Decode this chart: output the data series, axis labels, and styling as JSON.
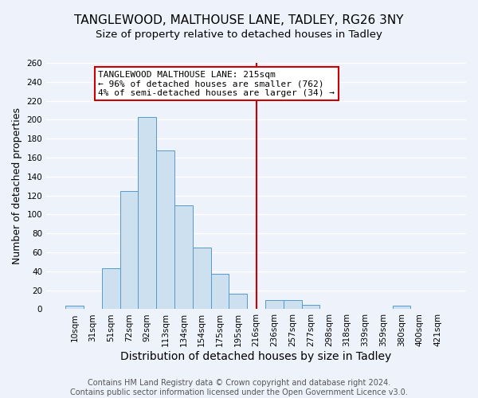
{
  "title": "TANGLEWOOD, MALTHOUSE LANE, TADLEY, RG26 3NY",
  "subtitle": "Size of property relative to detached houses in Tadley",
  "xlabel": "Distribution of detached houses by size in Tadley",
  "ylabel": "Number of detached properties",
  "bar_labels": [
    "10sqm",
    "31sqm",
    "51sqm",
    "72sqm",
    "92sqm",
    "113sqm",
    "134sqm",
    "154sqm",
    "175sqm",
    "195sqm",
    "216sqm",
    "236sqm",
    "257sqm",
    "277sqm",
    "298sqm",
    "318sqm",
    "339sqm",
    "359sqm",
    "380sqm",
    "400sqm",
    "421sqm"
  ],
  "bar_values": [
    4,
    0,
    43,
    125,
    203,
    168,
    110,
    65,
    37,
    16,
    0,
    10,
    10,
    5,
    0,
    0,
    0,
    0,
    4,
    0,
    0
  ],
  "bar_color": "#cce0f0",
  "bar_edge_color": "#5599cc",
  "vline_x": 10,
  "vline_color": "#cc0000",
  "annotation_line1": "TANGLEWOOD MALTHOUSE LANE: 215sqm",
  "annotation_line2": "← 96% of detached houses are smaller (762)",
  "annotation_line3": "4% of semi-detached houses are larger (34) →",
  "footer1": "Contains HM Land Registry data © Crown copyright and database right 2024.",
  "footer2": "Contains public sector information licensed under the Open Government Licence v3.0.",
  "ylim": [
    0,
    260
  ],
  "background_color": "#eef2fb",
  "grid_color": "#ffffff",
  "title_fontsize": 11,
  "subtitle_fontsize": 9.5,
  "xlabel_fontsize": 10,
  "ylabel_fontsize": 9,
  "tick_fontsize": 7.5,
  "footer_fontsize": 7,
  "annotation_fontsize": 8,
  "yticks": [
    0,
    20,
    40,
    60,
    80,
    100,
    120,
    140,
    160,
    180,
    200,
    220,
    240,
    260
  ]
}
